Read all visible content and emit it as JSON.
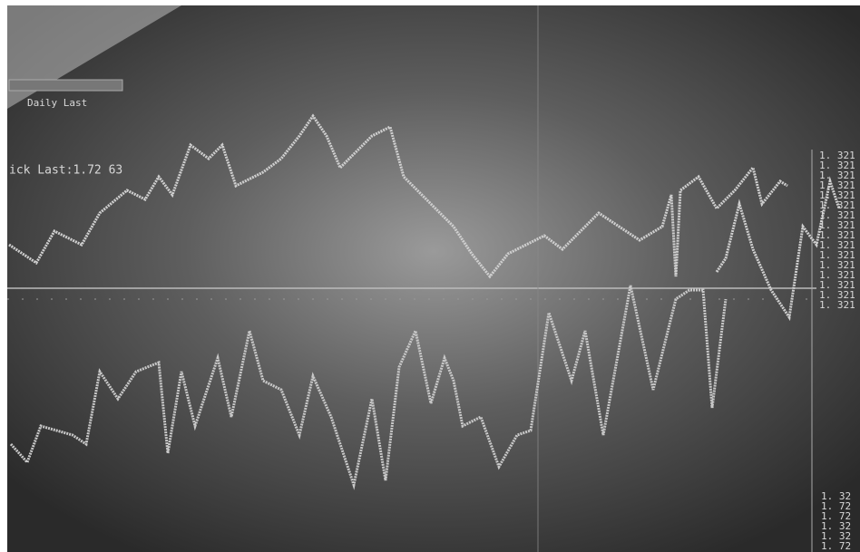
{
  "header": {
    "input_label": "Daily Last",
    "tick_label": "ick Last:1.72 63"
  },
  "right_scale": {
    "labels": [
      "1. 321",
      "1. 321",
      "1. 321",
      "1. 321",
      "1. 321",
      "1. 321",
      "1. 321",
      "1. 321",
      "1. 321",
      "1. 321",
      "1. 321",
      "1. 321",
      "1. 321",
      "1. 321",
      "1. 321",
      "1. 321"
    ]
  },
  "bottom_scale": {
    "labels": [
      "1. 32",
      "1. 72",
      "1. 72",
      "1. 32",
      "1. 32",
      "1. 72"
    ]
  }
}
